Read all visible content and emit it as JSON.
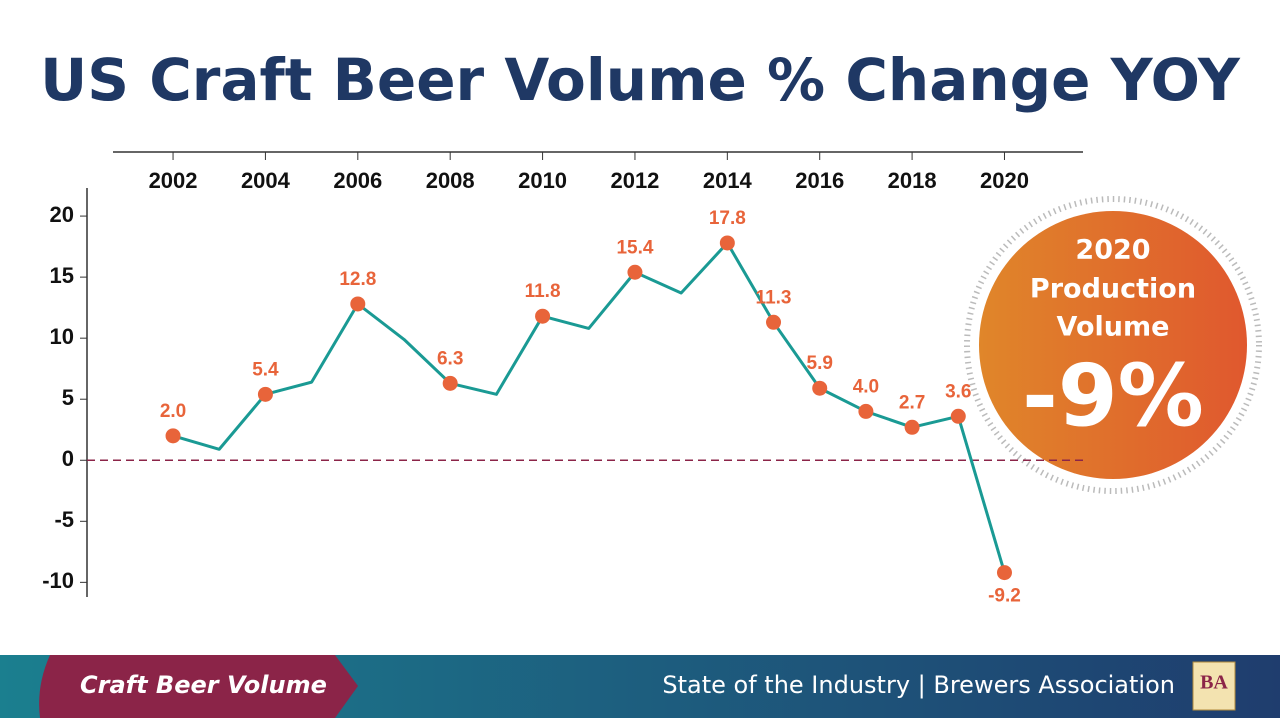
{
  "chart_data": {
    "type": "line",
    "title": "US Craft Beer Volume % Change YOY",
    "x": [
      2002,
      2003,
      2004,
      2005,
      2006,
      2007,
      2008,
      2009,
      2010,
      2011,
      2012,
      2013,
      2014,
      2015,
      2016,
      2017,
      2018,
      2019,
      2020
    ],
    "series": [
      {
        "name": "Craft Beer Volume",
        "color": "#1a9a94",
        "marker_color": "#e8643a",
        "values": [
          2.0,
          0.9,
          5.4,
          6.4,
          12.8,
          9.9,
          6.3,
          5.4,
          11.8,
          10.8,
          15.4,
          13.7,
          17.8,
          11.3,
          5.9,
          4.0,
          2.7,
          3.6,
          -9.2
        ],
        "value_labels": [
          "2.0",
          null,
          "5.4",
          null,
          "12.8",
          null,
          "6.3",
          null,
          "11.8",
          null,
          "15.4",
          null,
          "17.8",
          "11.3",
          "5.9",
          "4.0",
          "2.7",
          "3.6",
          "-9.2"
        ]
      }
    ],
    "xlim": [
      2000.7,
      2021.7
    ],
    "xticks": [
      2002,
      2004,
      2006,
      2008,
      2010,
      2012,
      2014,
      2016,
      2018,
      2020
    ],
    "ylim": [
      -11.2,
      22.3
    ],
    "yticks": [
      -10,
      -5,
      0,
      5,
      10,
      15,
      20
    ],
    "reference_line": 0
  },
  "badge": {
    "lines": [
      "2020",
      "Production",
      "Volume"
    ],
    "value": "-9%"
  },
  "footer": {
    "section": "Craft Beer Volume",
    "source": "State of the Industry | Brewers Association",
    "logo": "BA"
  }
}
